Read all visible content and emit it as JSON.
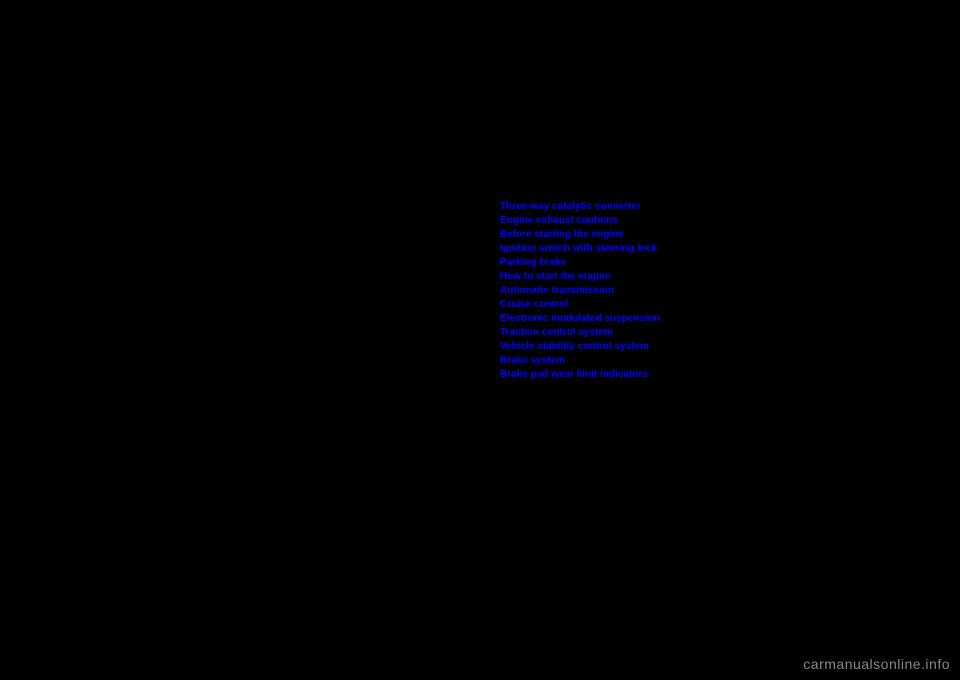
{
  "toc": {
    "items": [
      "Three-way catalytic converter",
      "Engine exhaust cautions",
      "Before starting the engine",
      "Ignition switch with steering lock",
      "Parking brake",
      "How to start the engine",
      "Automatic transmission",
      "Cruise control",
      "Electronic modulated suspension",
      "Traction control system",
      "Vehicle stability control system",
      "Brake system",
      "Brake pad wear limit indicators"
    ]
  },
  "colors": {
    "background": "#000000",
    "link_color": "#0000ff",
    "watermark_color": "#888888"
  },
  "typography": {
    "link_fontsize": 10,
    "link_fontweight": "bold",
    "watermark_fontsize": 14
  },
  "watermark_text": "carmanualsonline.info"
}
